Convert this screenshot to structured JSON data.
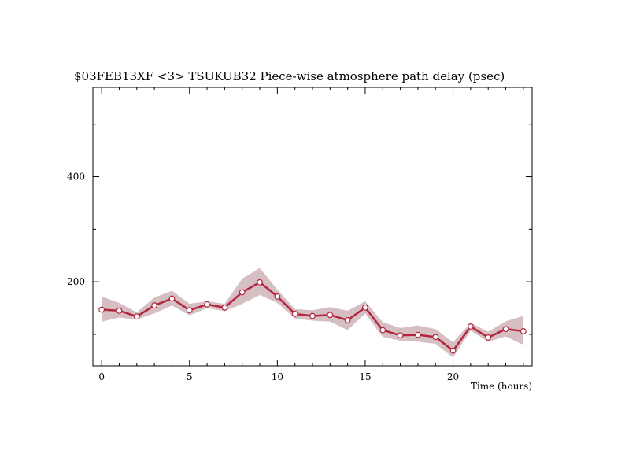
{
  "chart_data": {
    "type": "line",
    "title": "$03FEB13XF <3>  TSUKUB32  Piece-wise atmosphere path delay (psec)",
    "xlabel": "Time (hours)",
    "ylabel": "",
    "xlim": [
      -0.5,
      24.5
    ],
    "ylim": [
      40,
      570
    ],
    "x_ticks_major": [
      0,
      5,
      10,
      15,
      20
    ],
    "x_tick_labels": [
      "0",
      "5",
      "10",
      "15",
      "20"
    ],
    "y_ticks_major": [
      200,
      400
    ],
    "y_tick_labels": [
      "200",
      "400"
    ],
    "y_ticks_minor": [
      100,
      300,
      500
    ],
    "grid": false,
    "colors": {
      "line": "#b3263f",
      "band": "#d5bfc3",
      "marker_fill": "#ffffff",
      "axis": "#000000"
    },
    "series": [
      {
        "x": [
          0,
          1,
          2,
          3,
          4,
          5,
          6,
          7,
          8,
          9,
          10,
          11,
          12,
          13,
          14,
          15,
          16,
          17,
          18,
          19,
          20,
          21,
          22,
          23,
          24
        ],
        "values": [
          147,
          145,
          134,
          155,
          168,
          146,
          157,
          151,
          180,
          199,
          172,
          139,
          135,
          137,
          127,
          151,
          108,
          98,
          99,
          95,
          69,
          115,
          94,
          110,
          106
        ],
        "band_upper": [
          172,
          160,
          142,
          170,
          183,
          158,
          163,
          158,
          206,
          226,
          185,
          148,
          146,
          152,
          145,
          163,
          123,
          112,
          117,
          110,
          85,
          122,
          105,
          125,
          135
        ],
        "band_lower": [
          124,
          132,
          128,
          140,
          155,
          136,
          150,
          144,
          158,
          175,
          160,
          130,
          126,
          124,
          108,
          140,
          95,
          88,
          86,
          82,
          56,
          107,
          86,
          96,
          80
        ]
      }
    ]
  }
}
